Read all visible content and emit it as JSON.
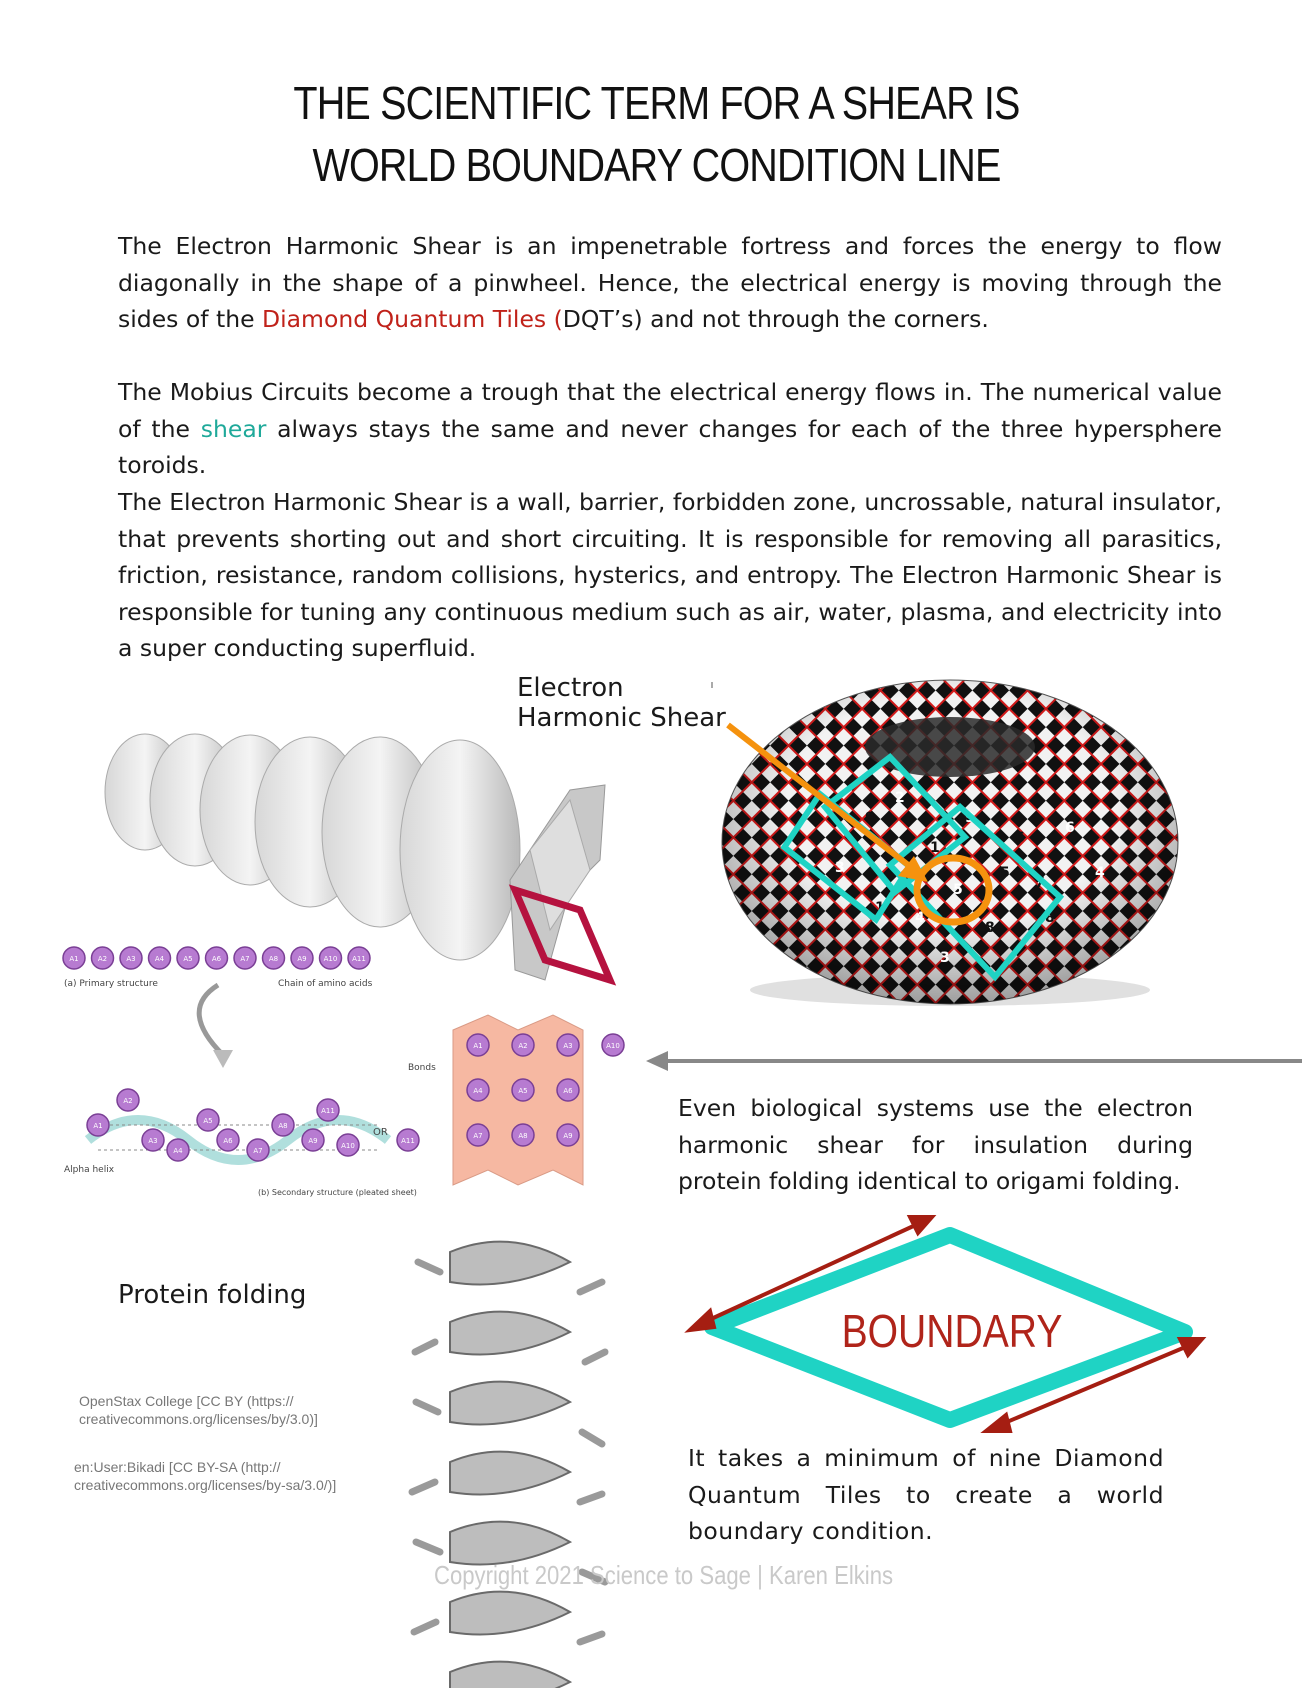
{
  "title": {
    "line1": "THE SCIENTIFIC TERM FOR A SHEAR IS",
    "line2": "WORLD BOUNDARY CONDITION LINE"
  },
  "paragraph1": {
    "before": "The Electron Harmonic Shear is an impenetrable fortress and forces the energy to flow diagonally in the shape of a pinwheel. Hence, the electrical energy is moving through the sides of the ",
    "highlight": "Diamond Quantum Tiles (",
    "after": "DQT’s) and not through the corners."
  },
  "paragraph2": {
    "before": "The Mobius Circuits become a trough that the electrical energy flows in. The numerical value of the ",
    "highlight": "shear",
    "after": " always stays the same and never changes for each of the three hypersphere toroids."
  },
  "paragraph3": "The Electron Harmonic Shear is a wall, barrier, forbidden zone, uncrossable, natural insulator, that prevents shorting out and short circuiting. It is responsible for removing all parasitics, friction, resistance, random collisions, hysterics,  and entropy. The Electron Harmonic Shear is responsible for tuning any continuous medium such as air, water, plasma, and electricity into a super conducting  superfluid.",
  "shear_label": {
    "line1": "Electron",
    "line2": "Harmonic Shear"
  },
  "biology_caption": "Even biological systems use the electron harmonic shear for insulation during protein folding identical to origami folding.",
  "protein_label": "Protein folding",
  "credits": {
    "openstax": "OpenStax College [CC BY (https:// creativecommons.org/licenses/by/3.0)]",
    "bikadi": "en:User:Bikadi [CC BY-SA (http:// creativecommons.org/licenses/by-sa/3.0/)]"
  },
  "boundary_label": "BOUNDARY",
  "nine_tiles_caption": "It takes a minimum of nine Diamond Quantum Tiles to create a world boundary condition.",
  "protein_diagram": {
    "primary_label": "(a) Primary structure",
    "chain_label": "Chain of amino acids",
    "residues": [
      "A1",
      "A2",
      "A3",
      "A4",
      "A5",
      "A6",
      "A7",
      "A8",
      "A9",
      "A10",
      "A11"
    ],
    "helix_label": "Alpha helix",
    "or_label": "OR",
    "bonds_label": "Bonds",
    "secondary_label": "(b) Secondary structure (pleated sheet)"
  },
  "torus_numbers": [
    "9",
    "5",
    "1",
    "3",
    "6",
    "4",
    "8",
    "9",
    "7",
    "2",
    "5",
    "3",
    "8",
    "6",
    "1",
    "4"
  ],
  "footer": "Copyright 2021 Science to Sage | Karen Elkins",
  "colors": {
    "red": "#c0221a",
    "teal": "#1fd3c4",
    "orange": "#f5920e",
    "crimson": "#b5123f",
    "arrow_red": "#a51e12"
  }
}
